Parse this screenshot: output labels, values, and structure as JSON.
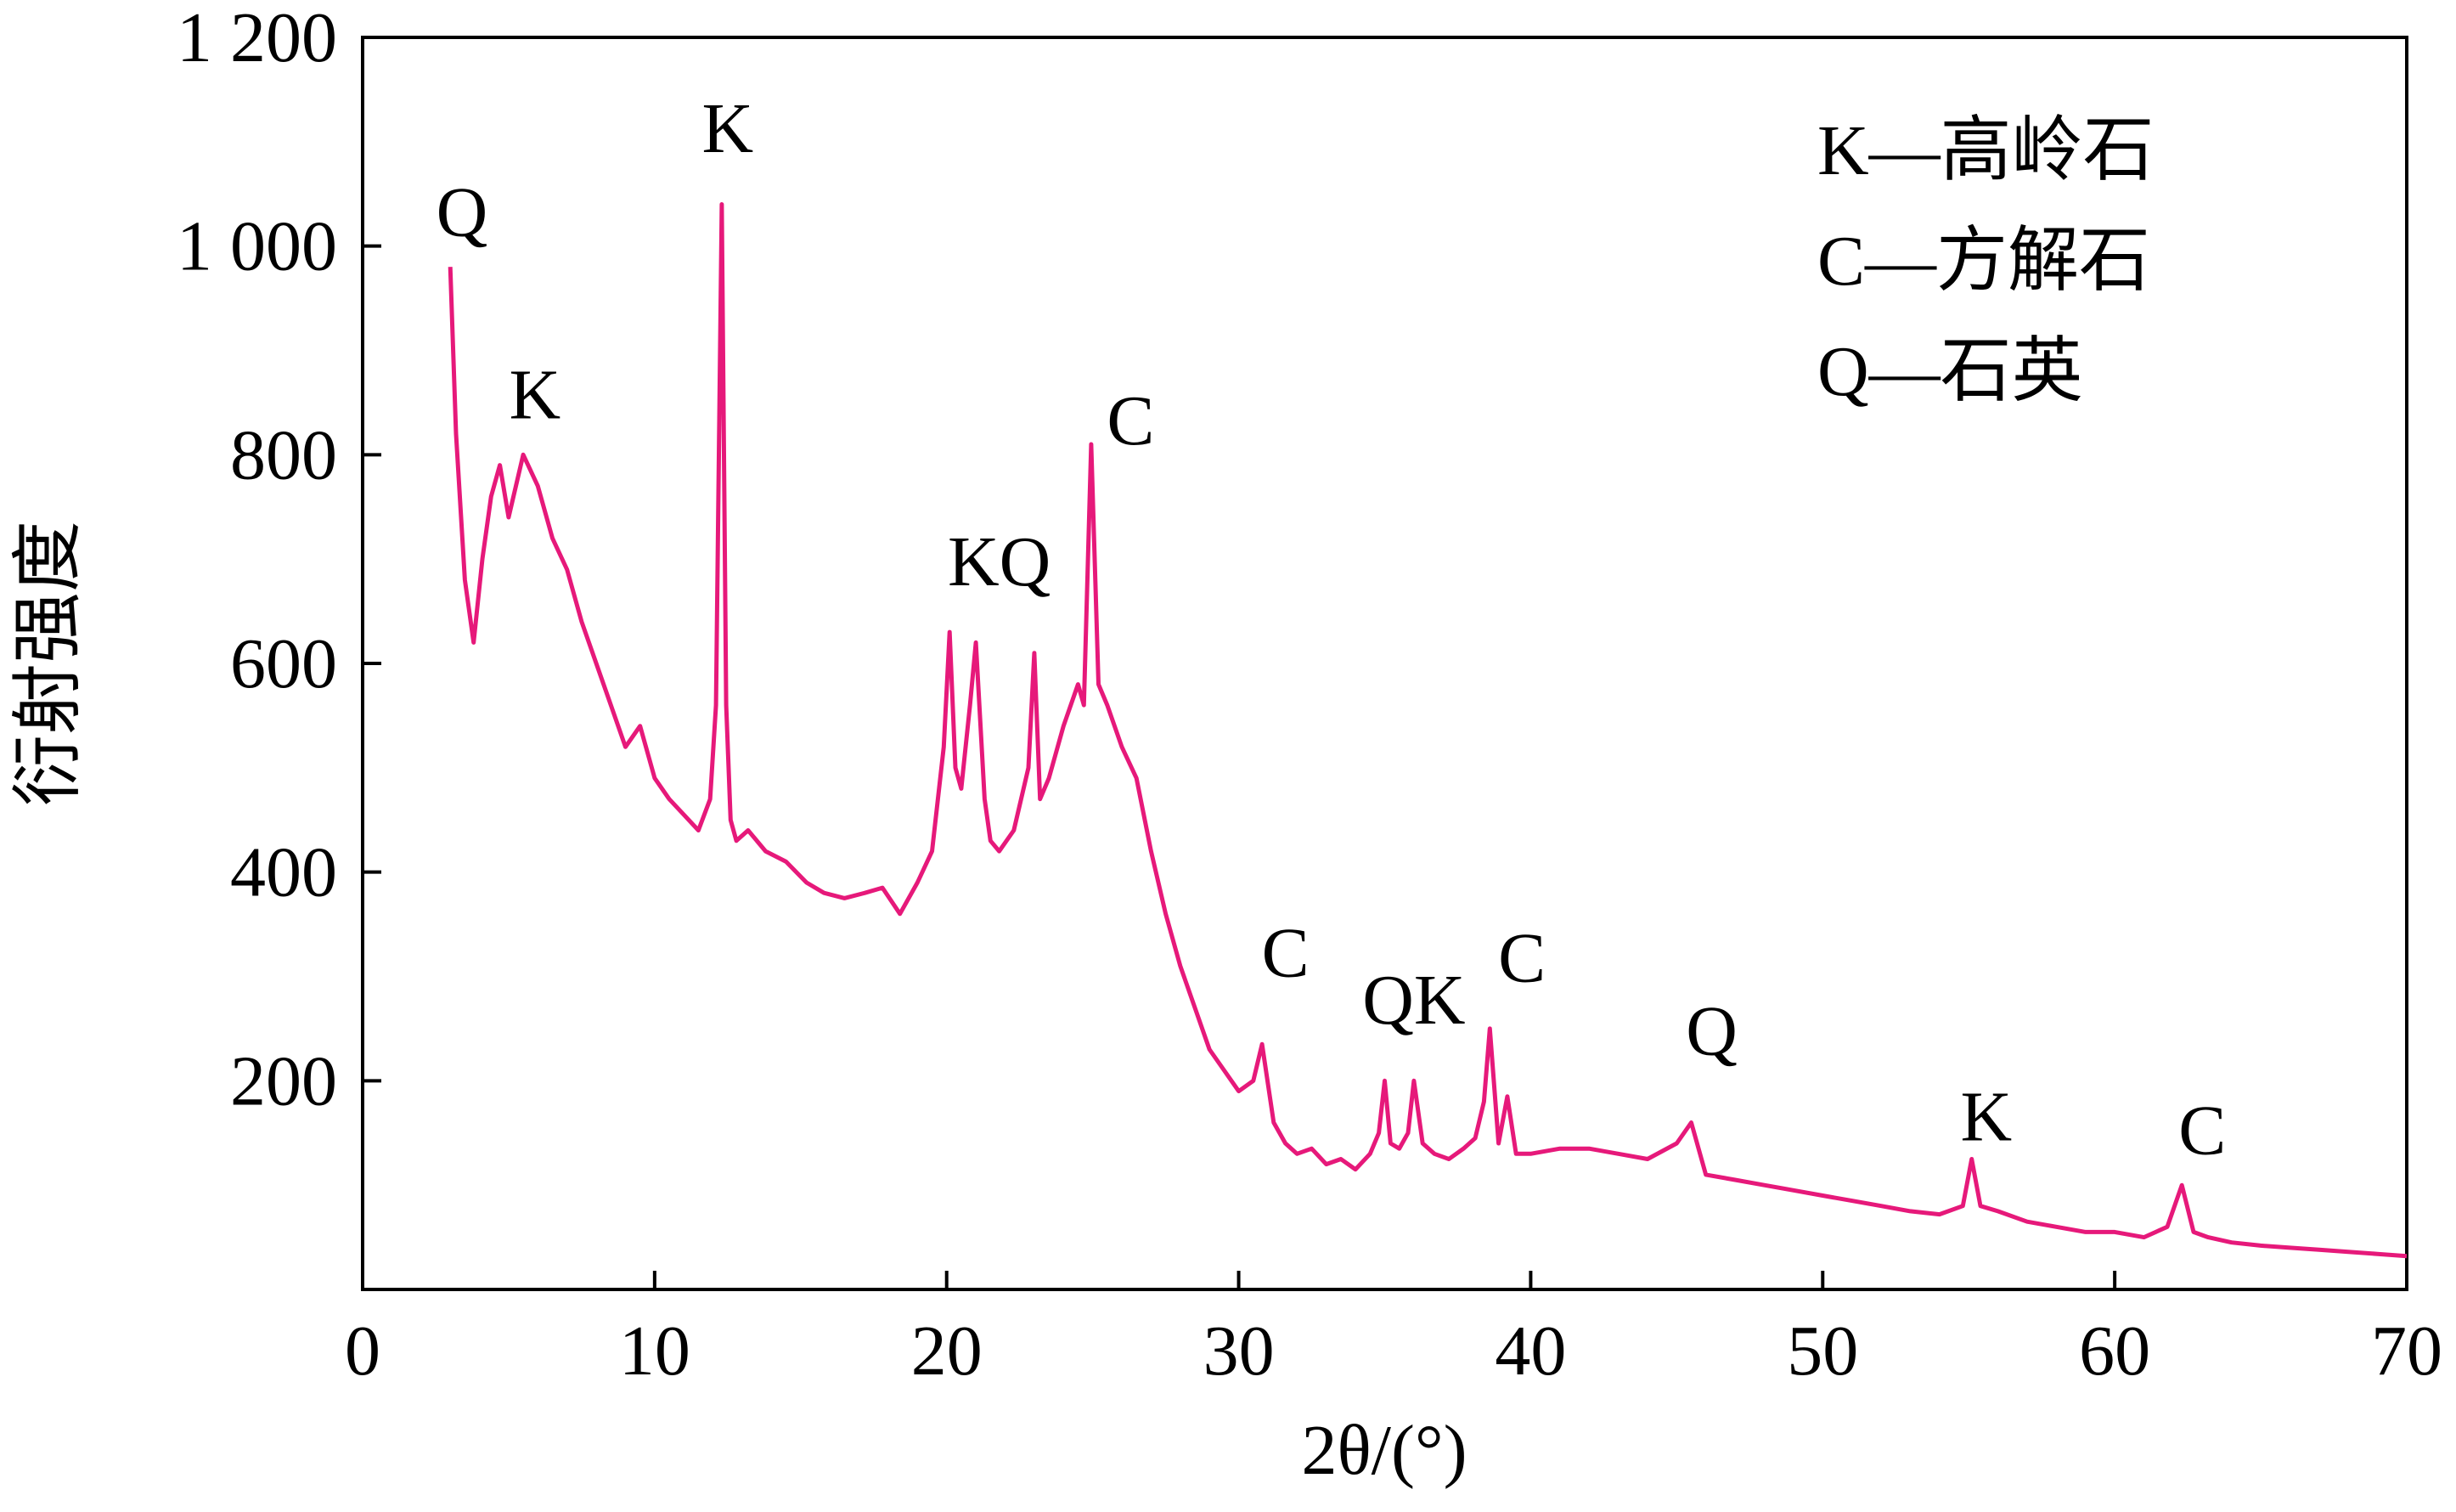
{
  "chart_data": {
    "type": "line",
    "xlabel": "2θ/(°)",
    "ylabel": "衍射强度",
    "xlim": [
      0,
      70
    ],
    "ylim": [
      0,
      1200
    ],
    "x_ticks": [
      0,
      10,
      20,
      30,
      40,
      50,
      60,
      70
    ],
    "y_ticks": [
      200,
      400,
      600,
      800,
      1000,
      1200
    ],
    "x_tick_labels": [
      "0",
      "10",
      "20",
      "30",
      "40",
      "50",
      "60",
      "70"
    ],
    "y_tick_labels": [
      "200",
      "400",
      "600",
      "800",
      "1 000",
      "1 200"
    ],
    "grid": false,
    "legend_position": "top-right",
    "legend": [
      "K—高岭石",
      "C—方解石",
      "Q—石英"
    ],
    "line_color": "#E6197A",
    "series": [
      {
        "x": [
          3.0,
          3.2,
          3.5,
          3.8,
          4.1,
          4.4,
          4.7,
          5.0,
          5.5,
          6.0,
          6.5,
          7.0,
          7.5,
          8.0,
          8.5,
          9.0,
          9.5,
          10.0,
          10.5,
          11.0,
          11.5,
          11.9,
          12.1,
          12.3,
          12.45,
          12.6,
          12.8,
          13.2,
          13.8,
          14.5,
          15.2,
          15.8,
          16.5,
          17.2,
          17.8,
          18.4,
          19.0,
          19.5,
          19.9,
          20.1,
          20.3,
          20.5,
          20.8,
          21.0,
          21.3,
          21.5,
          21.8,
          22.3,
          22.8,
          23.0,
          23.2,
          23.5,
          24.0,
          24.5,
          24.7,
          24.95,
          25.2,
          25.5,
          26.0,
          26.5,
          27.0,
          27.5,
          28.0,
          28.5,
          29.0,
          29.5,
          30.0,
          30.5,
          30.8,
          31.2,
          31.6,
          32.0,
          32.5,
          33.0,
          33.5,
          34.0,
          34.5,
          34.8,
          35.0,
          35.2,
          35.5,
          35.8,
          36.0,
          36.3,
          36.7,
          37.2,
          37.7,
          38.1,
          38.4,
          38.6,
          38.9,
          39.2,
          39.5,
          40.0,
          41.0,
          42.0,
          43.0,
          44.0,
          45.0,
          45.5,
          46.0,
          47.0,
          48.0,
          49.0,
          50.0,
          51.0,
          52.0,
          53.0,
          54.0,
          54.8,
          55.1,
          55.4,
          56.0,
          57.0,
          58.0,
          59.0,
          60.0,
          61.0,
          61.8,
          62.3,
          62.7,
          63.2,
          64.0,
          65.0,
          66.0,
          67.0,
          68.0,
          69.0,
          70.0
        ],
        "y": [
          980,
          820,
          680,
          620,
          700,
          760,
          790,
          740,
          800,
          770,
          720,
          690,
          640,
          600,
          560,
          520,
          540,
          490,
          470,
          455,
          440,
          470,
          560,
          1040,
          560,
          450,
          430,
          440,
          420,
          410,
          390,
          380,
          375,
          380,
          385,
          360,
          390,
          420,
          520,
          630,
          500,
          480,
          560,
          620,
          470,
          430,
          420,
          440,
          500,
          610,
          470,
          490,
          540,
          580,
          560,
          810,
          580,
          560,
          520,
          490,
          420,
          360,
          310,
          270,
          230,
          210,
          190,
          200,
          235,
          160,
          140,
          130,
          135,
          120,
          125,
          115,
          130,
          150,
          200,
          140,
          135,
          150,
          200,
          140,
          130,
          125,
          135,
          145,
          180,
          250,
          140,
          185,
          130,
          130,
          135,
          135,
          130,
          125,
          140,
          160,
          110,
          105,
          100,
          95,
          90,
          85,
          80,
          75,
          72,
          80,
          125,
          80,
          75,
          65,
          60,
          55,
          55,
          50,
          60,
          100,
          55,
          50,
          45,
          42,
          40,
          38,
          36,
          34,
          32
        ]
      }
    ],
    "annotations": [
      {
        "text": "Q",
        "x": 3.4,
        "y": 1010
      },
      {
        "text": "K",
        "x": 5.9,
        "y": 835
      },
      {
        "text": "K",
        "x": 12.5,
        "y": 1090
      },
      {
        "text": "KQ",
        "x": 21.8,
        "y": 675
      },
      {
        "text": "C",
        "x": 26.3,
        "y": 810
      },
      {
        "text": "C",
        "x": 31.6,
        "y": 300
      },
      {
        "text": "QK",
        "x": 36.0,
        "y": 255
      },
      {
        "text": "C",
        "x": 39.7,
        "y": 295
      },
      {
        "text": "Q",
        "x": 46.2,
        "y": 225
      },
      {
        "text": "K",
        "x": 55.6,
        "y": 143
      },
      {
        "text": "C",
        "x": 63.0,
        "y": 130
      }
    ]
  }
}
